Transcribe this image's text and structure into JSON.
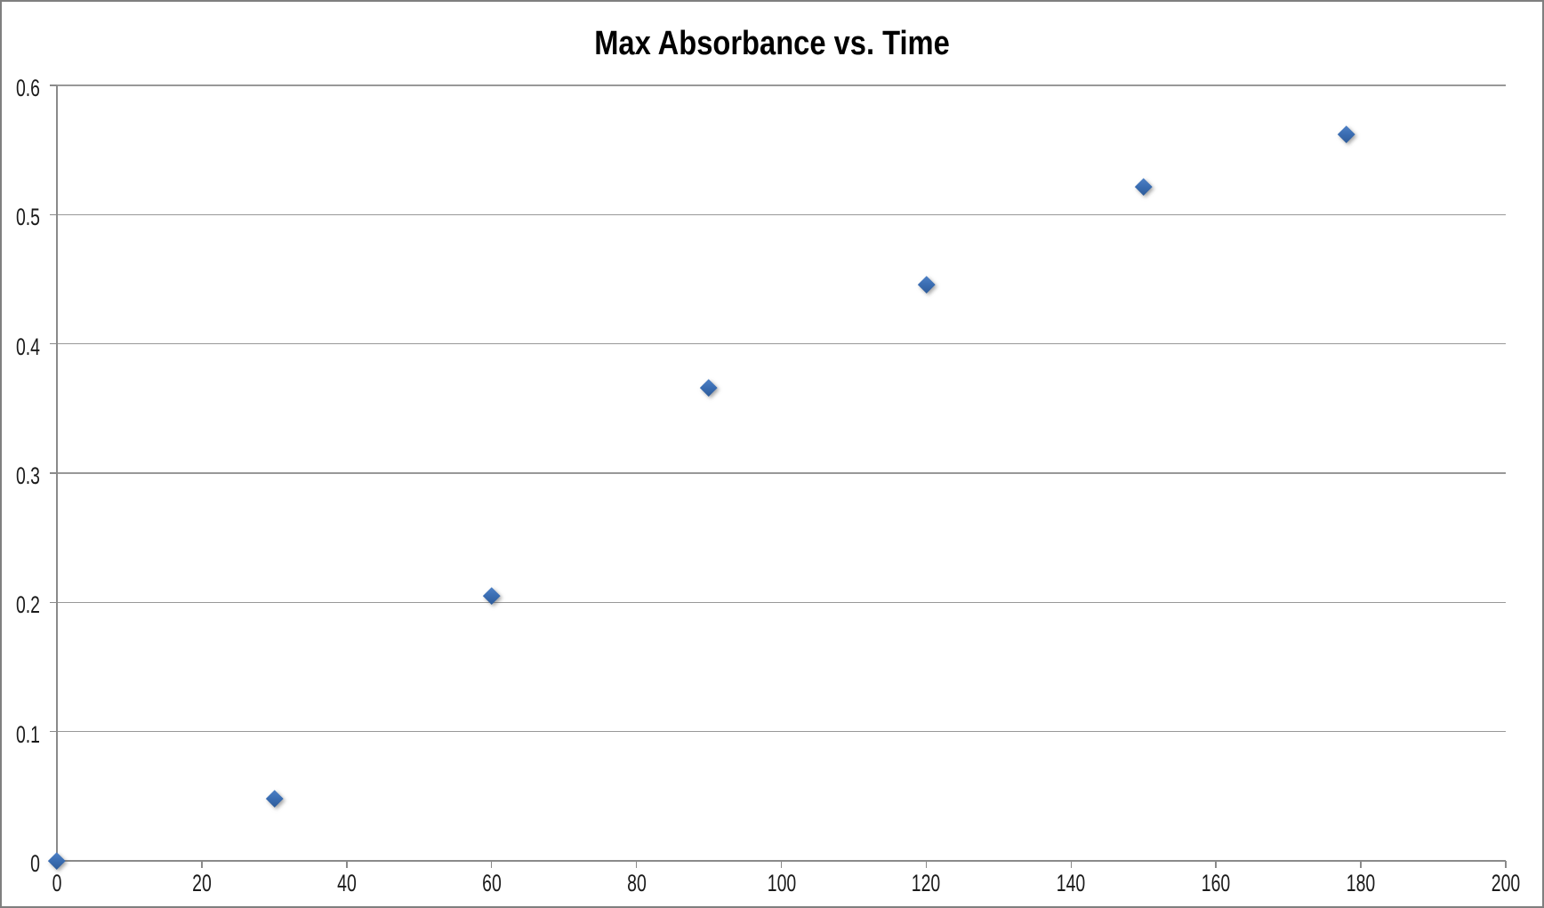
{
  "chart_data": {
    "type": "scatter",
    "title": "Max Absorbance vs. Time",
    "x": [
      0,
      30,
      60,
      90,
      120,
      150,
      178
    ],
    "y": [
      0,
      0.048,
      0.205,
      0.366,
      0.446,
      0.522,
      0.562
    ],
    "xlabel": "",
    "ylabel": "",
    "xlim": [
      0,
      200
    ],
    "ylim": [
      0,
      0.6
    ],
    "x_ticks": [
      0,
      20,
      40,
      60,
      80,
      100,
      120,
      140,
      160,
      180,
      200
    ],
    "x_tick_labels": [
      "0",
      "20",
      "40",
      "60",
      "80",
      "100",
      "120",
      "140",
      "160",
      "180",
      "200"
    ],
    "y_ticks": [
      0,
      0.1,
      0.2,
      0.3,
      0.4,
      0.5,
      0.6
    ],
    "y_tick_labels": [
      "0",
      "0.1",
      "0.2",
      "0.3",
      "0.4",
      "0.5",
      "0.6"
    ],
    "grid": "horizontal",
    "legend": "none",
    "marker": "diamond",
    "marker_color": "#3C6FB4",
    "axis_color": "#8A8A8A",
    "gridline_color": "#989898",
    "border_color": "#7F7F7F",
    "background_color": "#FFFFFF",
    "text_color": "#1A1A1A"
  }
}
